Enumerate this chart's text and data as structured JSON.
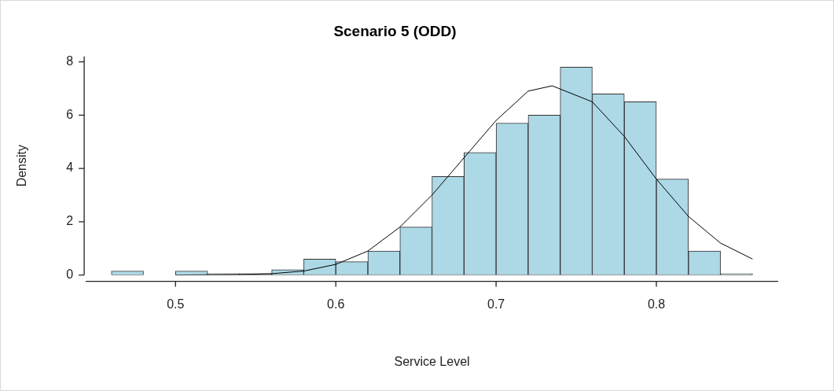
{
  "chart_data": {
    "type": "histogram",
    "title": "Scenario 5 (ODD)",
    "xlabel": "Service Level",
    "ylabel": "Density",
    "bins": [
      0.46,
      0.48,
      0.5,
      0.52,
      0.54,
      0.56,
      0.58,
      0.6,
      0.62,
      0.64,
      0.66,
      0.68,
      0.7,
      0.72,
      0.74,
      0.76,
      0.78,
      0.8,
      0.82,
      0.84,
      0.86
    ],
    "values": [
      0.15,
      0,
      0.15,
      0.05,
      0.05,
      0.2,
      0.6,
      0.5,
      0.9,
      1.8,
      3.7,
      4.6,
      5.7,
      6,
      7.8,
      6.8,
      6.5,
      3.6,
      0.9,
      0.05
    ],
    "color": "#add8e6",
    "series": [
      {
        "type": "line",
        "color": "#000000",
        "x": [
          0.5,
          0.54,
          0.56,
          0.58,
          0.6,
          0.62,
          0.64,
          0.66,
          0.68,
          0.7,
          0.72,
          0.735,
          0.76,
          0.78,
          0.8,
          0.82,
          0.84,
          0.86
        ],
        "values": [
          0,
          0.02,
          0.05,
          0.15,
          0.4,
          0.9,
          1.8,
          3,
          4.4,
          5.8,
          6.9,
          7.1,
          6.5,
          5.2,
          3.6,
          2.2,
          1.2,
          0.6
        ]
      }
    ],
    "xlim": [
      0.444,
      0.876
    ],
    "ylim": [
      0,
      8.2
    ],
    "xticks": [
      0.5,
      0.6,
      0.7,
      0.8
    ],
    "yticks": [
      0,
      2,
      4,
      6,
      8
    ],
    "grid": false,
    "legend": false
  }
}
